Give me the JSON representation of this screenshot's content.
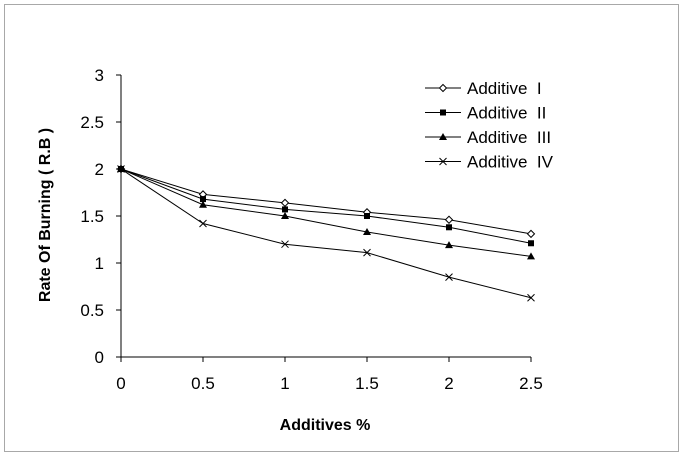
{
  "chart_data": {
    "type": "line",
    "title": "",
    "xlabel": "Additives  %",
    "ylabel": "Rate Of Burning ( R.B )",
    "x": [
      0,
      0.5,
      1,
      1.5,
      2,
      2.5
    ],
    "x_ticks": [
      "0",
      "0.5",
      "1",
      "1.5",
      "2",
      "2.5"
    ],
    "y_ticks": [
      "0",
      "0.5",
      "1",
      "1.5",
      "2",
      "2.5",
      "3"
    ],
    "xlim": [
      0,
      2.5
    ],
    "ylim": [
      0,
      3
    ],
    "grid": false,
    "legend_position": "top-right",
    "series": [
      {
        "name": "Additive  I",
        "marker": "diamond-open",
        "values": [
          2.0,
          1.73,
          1.64,
          1.54,
          1.46,
          1.31
        ]
      },
      {
        "name": "Additive  II",
        "marker": "square",
        "values": [
          2.0,
          1.68,
          1.57,
          1.5,
          1.38,
          1.21
        ]
      },
      {
        "name": "Additive  III",
        "marker": "triangle",
        "values": [
          2.0,
          1.62,
          1.5,
          1.33,
          1.19,
          1.07
        ]
      },
      {
        "name": "Additive  IV",
        "marker": "x",
        "values": [
          2.0,
          1.42,
          1.2,
          1.11,
          0.85,
          0.63
        ]
      }
    ]
  }
}
